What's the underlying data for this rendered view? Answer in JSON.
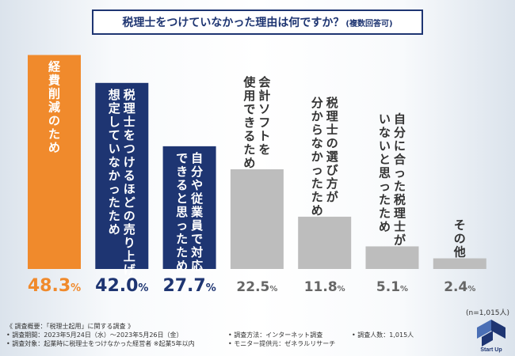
{
  "title": "税理士をつけていなかった理由は何ですか？",
  "title_note": "(複数回答可)",
  "chart_data": {
    "type": "bar",
    "categories": [
      "経費削減のため",
      "税理士をつけるほどの売り上げを想定していなかったため",
      "自分や従業員で対応できると思ったため",
      "会計ソフトを使用できるため",
      "税理士の選び方が分からなかったため",
      "自分に合った税理士がいないと思ったため",
      "その他"
    ],
    "label_lines": [
      [
        "経費削減のため"
      ],
      [
        "税理士をつけるほどの売り上げを",
        "想定していなかったため"
      ],
      [
        "自分や従業員で対応",
        "できると思ったため"
      ],
      [
        "会計ソフトを",
        "使用できるため"
      ],
      [
        "税理士の選び方が",
        "分からなかったため"
      ],
      [
        "自分に合った税理士が",
        "いないと思ったため"
      ],
      [
        "その他"
      ]
    ],
    "values": [
      48.3,
      42.0,
      27.7,
      22.5,
      11.8,
      5.1,
      2.4
    ],
    "value_labels": [
      "48.3",
      "42.0",
      "27.7",
      "22.5",
      "11.8",
      "5.1",
      "2.4"
    ],
    "unit": "%",
    "colors": [
      "#f08a2c",
      "#1e3572",
      "#1e3572",
      "#bdbdbd",
      "#bdbdbd",
      "#bdbdbd",
      "#bdbdbd"
    ],
    "value_colors": [
      "#f08a2c",
      "#1e3572",
      "#1e3572",
      "#666666",
      "#666666",
      "#666666",
      "#666666"
    ],
    "ylim": [
      0,
      50
    ],
    "grid": false,
    "legend": "none"
  },
  "sample_size": "(n=1,015人)",
  "notes": {
    "overview": "《 調査概要：「税理士起用」に関する調査 》",
    "period": "• 調査期間：2023年5月24日（水）〜2023年5月26日（金）",
    "method": "• 調査方法：インターネット調査",
    "respondents": "• 調査人数：1,015人",
    "target": "• 調査対象：起業時に税理士をつけなかった経営者 ※起業5年以内",
    "provider": "• モニター提供元：ゼネラルリサーチ"
  },
  "logo_text": "Start Up",
  "logo_icon": "startup-logo-icon"
}
